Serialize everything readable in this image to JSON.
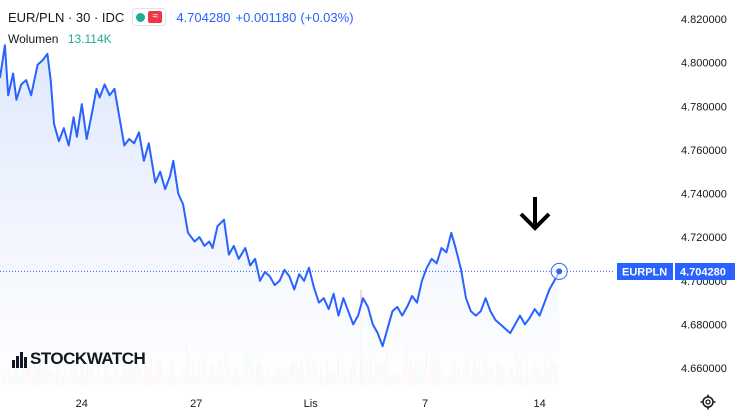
{
  "header": {
    "symbol": "EUR/PLN · 30 · IDC",
    "price": "4.704280",
    "change": "+0.001180",
    "change_pct": "(+0.03%)"
  },
  "volume": {
    "label": "Wolumen",
    "value": "13.114K"
  },
  "logo": {
    "text": "STOCKWATCH"
  },
  "badge": {
    "symbol": "EURPLN",
    "price": "4.704280"
  },
  "colors": {
    "line": "#2962ff",
    "fill": "#dfe8fc",
    "badge": "#2962ff",
    "vol_up": "#9ad0c3",
    "vol_down": "#f0a8a4",
    "arrow": "#000000"
  },
  "icons": [
    "settings-gear-icon",
    "down-arrow-annotation-icon"
  ],
  "chart_data": {
    "type": "area",
    "y_ticks": [
      "4.820000",
      "4.800000",
      "4.780000",
      "4.760000",
      "4.740000",
      "4.720000",
      "4.700000",
      "4.680000",
      "4.660000"
    ],
    "ylim": [
      4.66,
      4.82
    ],
    "x_ticks": [
      "24",
      "27",
      "Lis",
      "7",
      "14"
    ],
    "x_tick_positions": [
      10.0,
      17.0,
      24.0,
      31.0,
      38.0
    ],
    "xlim": [
      5.0,
      42.0
    ],
    "last_value": 4.70428,
    "grid": false,
    "series": [
      {
        "x": [
          5.0,
          5.3,
          5.5,
          5.8,
          6.0,
          6.3,
          6.6,
          6.9,
          7.3,
          7.6,
          7.9,
          8.1,
          8.3,
          8.6,
          8.9,
          9.2,
          9.5,
          9.7,
          10.0,
          10.3,
          10.6,
          10.9,
          11.1,
          11.4,
          11.7,
          12.0,
          12.3,
          12.6,
          12.9,
          13.2,
          13.5,
          13.8,
          14.1,
          14.5,
          14.8,
          15.1,
          15.4,
          15.6,
          15.9,
          16.2,
          16.5,
          16.9,
          17.2,
          17.5,
          17.8,
          18.0,
          18.3,
          18.7,
          19.0,
          19.3,
          19.6,
          20.0,
          20.3,
          20.6,
          20.9,
          21.2,
          21.5,
          21.8,
          22.1,
          22.4,
          22.7,
          23.0,
          23.3,
          23.6,
          23.9,
          24.2,
          24.5,
          24.8,
          25.1,
          25.4,
          25.7,
          26.0,
          26.3,
          26.6,
          26.9,
          27.2,
          27.5,
          27.8,
          28.1,
          28.4,
          28.7,
          29.0,
          29.3,
          29.6,
          29.9,
          30.2,
          30.5,
          30.8,
          31.1,
          31.4,
          31.7,
          32.0,
          32.3,
          32.6,
          32.9,
          33.2,
          33.5,
          33.8,
          34.1,
          34.4,
          34.7,
          35.0,
          35.3,
          35.6,
          35.9,
          36.2,
          36.5,
          36.8,
          37.1,
          37.4,
          37.7,
          38.0,
          38.3,
          38.6,
          38.9,
          39.2
        ],
        "values": [
          4.793,
          4.808,
          4.785,
          4.795,
          4.783,
          4.79,
          4.792,
          4.785,
          4.799,
          4.801,
          4.804,
          4.792,
          4.772,
          4.764,
          4.77,
          4.762,
          4.775,
          4.766,
          4.781,
          4.765,
          4.776,
          4.788,
          4.784,
          4.79,
          4.785,
          4.788,
          4.775,
          4.762,
          4.765,
          4.763,
          4.768,
          4.755,
          4.763,
          4.745,
          4.75,
          4.742,
          4.748,
          4.755,
          4.74,
          4.735,
          4.722,
          4.718,
          4.72,
          4.716,
          4.718,
          4.715,
          4.725,
          4.728,
          4.712,
          4.716,
          4.71,
          4.715,
          4.707,
          4.71,
          4.7,
          4.704,
          4.702,
          4.698,
          4.7,
          4.705,
          4.702,
          4.696,
          4.703,
          4.7,
          4.706,
          4.697,
          4.69,
          4.692,
          4.687,
          4.694,
          4.684,
          4.692,
          4.686,
          4.68,
          4.684,
          4.692,
          4.688,
          4.68,
          4.676,
          4.67,
          4.678,
          4.686,
          4.688,
          4.684,
          4.688,
          4.693,
          4.69,
          4.7,
          4.706,
          4.71,
          4.708,
          4.715,
          4.713,
          4.722,
          4.714,
          4.705,
          4.692,
          4.686,
          4.684,
          4.686,
          4.692,
          4.686,
          4.682,
          4.68,
          4.678,
          4.676,
          4.68,
          4.684,
          4.68,
          4.683,
          4.687,
          4.684,
          4.69,
          4.696,
          4.7,
          4.704
        ]
      }
    ]
  }
}
